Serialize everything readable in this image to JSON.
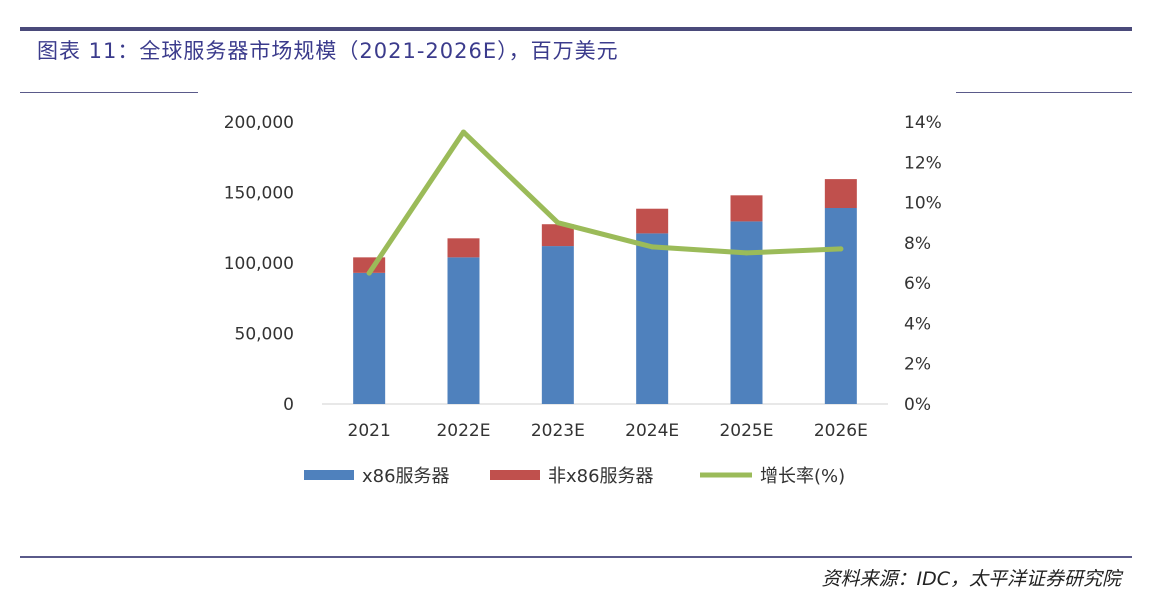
{
  "header": {
    "title": "图表 11：全球服务器市场规模（2021-2026E），百万美元"
  },
  "footer": {
    "source": "资料来源：IDC，太平洋证券研究院"
  },
  "colors": {
    "x86": "#4f81bd",
    "non_x86": "#c0504d",
    "growth": "#9bbb59"
  },
  "chart_data": {
    "type": "bar",
    "stacked": true,
    "categories": [
      "2021",
      "2022E",
      "2023E",
      "2024E",
      "2025E",
      "2026E"
    ],
    "series": [
      {
        "name": "x86服务器",
        "values": [
          93000,
          104000,
          112000,
          121000,
          129500,
          139000
        ]
      },
      {
        "name": "非x86服务器",
        "values": [
          11000,
          13500,
          15500,
          17500,
          18500,
          20500
        ]
      },
      {
        "name": "增长率(%)",
        "type": "line",
        "axis": "right",
        "values": [
          6.5,
          13.5,
          9.0,
          7.8,
          7.5,
          7.7
        ]
      }
    ],
    "y_left": {
      "ticks": [
        "0",
        "50,000",
        "100,000",
        "150,000",
        "200,000"
      ],
      "lim": [
        0,
        200000
      ]
    },
    "y_right": {
      "ticks": [
        "0%",
        "2%",
        "4%",
        "6%",
        "8%",
        "10%",
        "12%",
        "14%"
      ],
      "lim": [
        0,
        14
      ]
    },
    "legend": {
      "placement": "bottom",
      "items": [
        "x86服务器",
        "非x86服务器",
        "增长率(%)"
      ]
    },
    "grid": false
  }
}
